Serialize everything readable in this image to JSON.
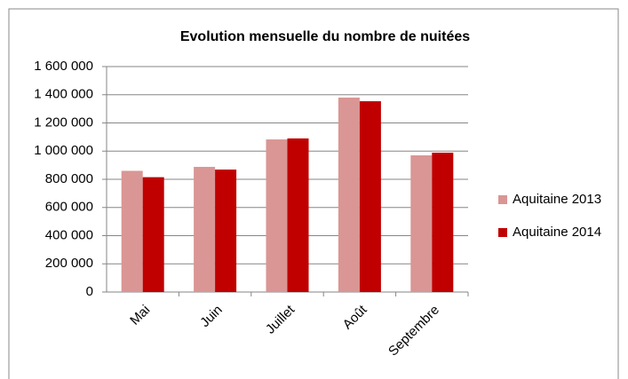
{
  "chart_data": {
    "type": "bar",
    "title": "Evolution mensuelle du nombre de nuitées",
    "categories": [
      "Mai",
      "Juin",
      "Juillet",
      "Août",
      "Septembre"
    ],
    "series": [
      {
        "name": "Aquitaine 2013",
        "color": "#d99694",
        "values": [
          860000,
          888000,
          1083000,
          1380000,
          970000
        ]
      },
      {
        "name": "Aquitaine 2014",
        "color": "#c00000",
        "values": [
          815000,
          869000,
          1090000,
          1354000,
          989000
        ]
      }
    ],
    "ylim": [
      0,
      1600000
    ],
    "yticks": [
      0,
      {
        "value": 200000,
        "label": "200 000"
      },
      {
        "value": 400000,
        "label": "400 000"
      },
      {
        "value": 600000,
        "label": "600 000"
      },
      {
        "value": 800000,
        "label": "800 000"
      },
      {
        "value": 1000000,
        "label": "1 000 000"
      },
      {
        "value": 1200000,
        "label": "1 200 000"
      },
      {
        "value": 1400000,
        "label": "1 400 000"
      },
      {
        "value": 1600000,
        "label": "1 600 000"
      }
    ],
    "grid": true,
    "legend": "right"
  }
}
